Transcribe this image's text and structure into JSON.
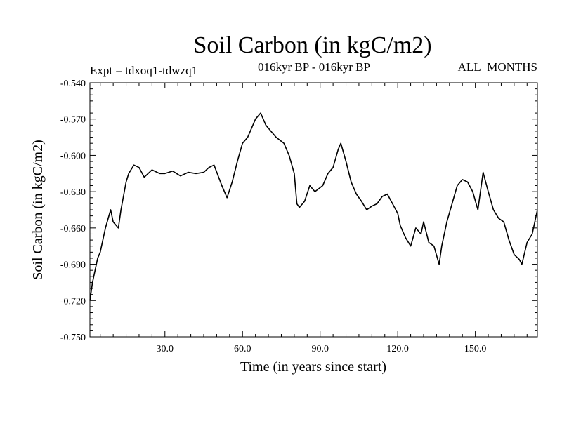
{
  "chart_data": {
    "type": "line",
    "title": "Soil Carbon (in kgC/m2)",
    "subtitle_left": "Expt = tdxoq1-tdwzq1",
    "subtitle_center": "016kyr BP - 016kyr BP",
    "subtitle_right": "ALL_MONTHS",
    "xlabel": "Time (in years since start)",
    "ylabel": "Soil Carbon (in kgC/m2)",
    "xlim": [
      1,
      174
    ],
    "ylim": [
      -0.75,
      -0.54
    ],
    "xticks": [
      30,
      60,
      90,
      120,
      150
    ],
    "xtick_labels": [
      "30.0",
      "60.0",
      "90.0",
      "120.0",
      "150.0"
    ],
    "yticks": [
      -0.54,
      -0.57,
      -0.6,
      -0.63,
      -0.66,
      -0.69,
      -0.72,
      -0.75
    ],
    "ytick_labels": [
      "-0.540",
      "-0.570",
      "-0.600",
      "-0.630",
      "-0.660",
      "-0.690",
      "-0.720",
      "-0.750"
    ],
    "line_color": "#000000",
    "series": [
      {
        "name": "Soil Carbon",
        "x": [
          1,
          2,
          4,
          5,
          7,
          9,
          10,
          12,
          13,
          15,
          16,
          18,
          20,
          22,
          25,
          28,
          30,
          33,
          36,
          39,
          42,
          45,
          47,
          49,
          52,
          54,
          56,
          58,
          60,
          62,
          64,
          65,
          67,
          69,
          71,
          73,
          76,
          78,
          80,
          81,
          82,
          84,
          86,
          88,
          91,
          93,
          95,
          97,
          98,
          100,
          102,
          104,
          106,
          108,
          110,
          112,
          114,
          116,
          118,
          120,
          121,
          123,
          125,
          127,
          129,
          130,
          132,
          134,
          136,
          137,
          139,
          141,
          143,
          145,
          147,
          149,
          151,
          153,
          155,
          157,
          159,
          161,
          163,
          165,
          167,
          168,
          170,
          172,
          174
        ],
        "y": [
          -0.72,
          -0.705,
          -0.685,
          -0.68,
          -0.66,
          -0.645,
          -0.655,
          -0.66,
          -0.645,
          -0.622,
          -0.615,
          -0.608,
          -0.61,
          -0.618,
          -0.612,
          -0.615,
          -0.615,
          -0.613,
          -0.617,
          -0.614,
          -0.615,
          -0.614,
          -0.61,
          -0.608,
          -0.625,
          -0.635,
          -0.622,
          -0.605,
          -0.59,
          -0.585,
          -0.575,
          -0.57,
          -0.565,
          -0.575,
          -0.58,
          -0.585,
          -0.59,
          -0.6,
          -0.615,
          -0.64,
          -0.643,
          -0.638,
          -0.625,
          -0.63,
          -0.625,
          -0.615,
          -0.61,
          -0.595,
          -0.59,
          -0.605,
          -0.622,
          -0.632,
          -0.638,
          -0.645,
          -0.642,
          -0.64,
          -0.634,
          -0.632,
          -0.64,
          -0.648,
          -0.658,
          -0.668,
          -0.675,
          -0.66,
          -0.665,
          -0.655,
          -0.672,
          -0.675,
          -0.69,
          -0.675,
          -0.655,
          -0.64,
          -0.625,
          -0.62,
          -0.622,
          -0.63,
          -0.645,
          -0.614,
          -0.63,
          -0.645,
          -0.652,
          -0.655,
          -0.67,
          -0.682,
          -0.686,
          -0.69,
          -0.672,
          -0.665,
          -0.645
        ]
      }
    ]
  }
}
